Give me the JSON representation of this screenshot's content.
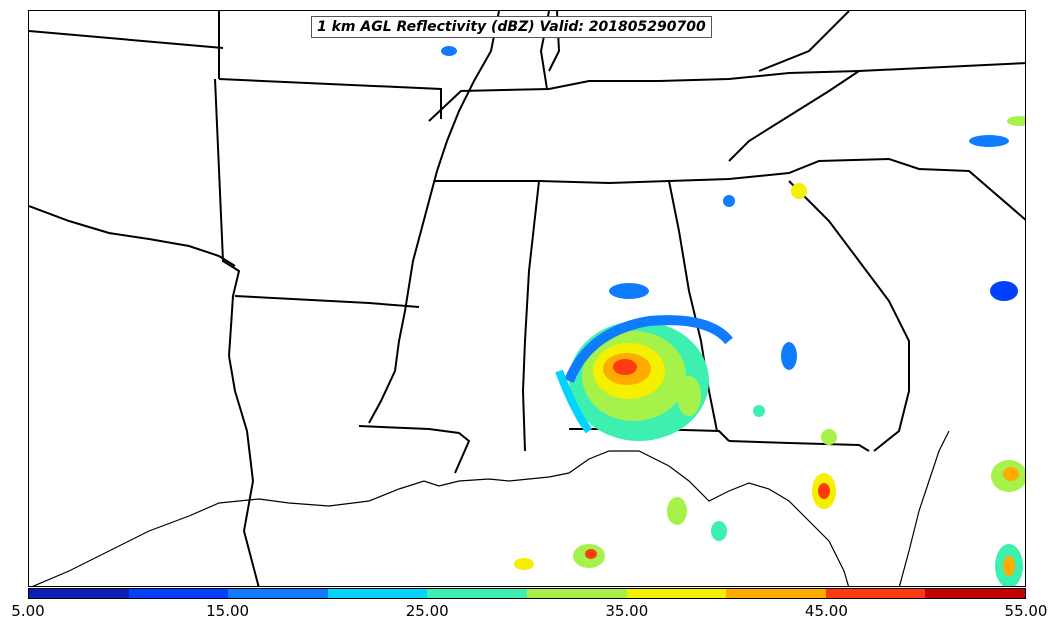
{
  "title": "1 km AGL Reflectivity (dBZ) Valid: 201805290700",
  "colorbar": {
    "colors": [
      "#0a1fb4",
      "#0040ff",
      "#0f7bff",
      "#00d4ff",
      "#3df0b0",
      "#a6f24b",
      "#f5f000",
      "#ffab00",
      "#ff3a10",
      "#c40000"
    ],
    "tick_labels": [
      "5.00",
      "15.00",
      "25.00",
      "35.00",
      "45.00",
      "55.00"
    ],
    "min": 5,
    "max": 55,
    "step": 5
  },
  "palette": {
    "boundary": "#000000",
    "background": "#ffffff"
  }
}
